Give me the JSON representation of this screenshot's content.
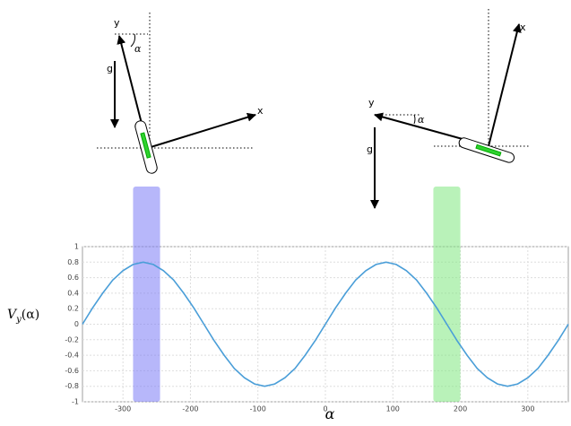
{
  "chart_data": {
    "type": "line",
    "ylabel": [
      "V",
      "y",
      "(α)"
    ],
    "xlabel": "α",
    "x": [
      -360,
      -345,
      -330,
      -315,
      -300,
      -285,
      -270,
      -255,
      -240,
      -225,
      -210,
      -195,
      -180,
      -165,
      -150,
      -135,
      -120,
      -105,
      -90,
      -75,
      -60,
      -45,
      -30,
      -15,
      0,
      15,
      30,
      45,
      60,
      75,
      90,
      105,
      120,
      135,
      150,
      165,
      180,
      195,
      210,
      225,
      240,
      255,
      270,
      285,
      300,
      315,
      330,
      345,
      360
    ],
    "series": [
      {
        "color": "#4a9ed8",
        "values": [
          0,
          0.21,
          0.4,
          0.57,
          0.69,
          0.77,
          0.8,
          0.77,
          0.69,
          0.57,
          0.4,
          0.21,
          0,
          -0.21,
          -0.4,
          -0.57,
          -0.69,
          -0.77,
          -0.8,
          -0.77,
          -0.69,
          -0.57,
          -0.4,
          -0.21,
          0,
          0.21,
          0.4,
          0.57,
          0.69,
          0.77,
          0.8,
          0.77,
          0.69,
          0.57,
          0.4,
          0.21,
          0,
          -0.21,
          -0.4,
          -0.57,
          -0.69,
          -0.77,
          -0.8,
          -0.77,
          -0.69,
          -0.57,
          -0.4,
          -0.21,
          0
        ]
      }
    ],
    "highlights": [
      {
        "color": "#7b7bf5",
        "xrange": [
          -285,
          -245
        ]
      },
      {
        "color": "#7fe87f",
        "xrange": [
          160,
          200
        ]
      }
    ],
    "xlim": [
      -360,
      360
    ],
    "ylim": [
      -1,
      1
    ],
    "xticks": [
      -300,
      -200,
      -100,
      0,
      100,
      200,
      300
    ],
    "yticks": [
      -1,
      -0.8,
      -0.6,
      -0.4,
      -0.2,
      0,
      0.2,
      0.4,
      0.6,
      0.8,
      1
    ],
    "grid": true
  },
  "diagrams": [
    {
      "labels": [
        "y",
        "x",
        "α",
        "g"
      ]
    },
    {
      "labels": [
        "y",
        "x",
        "α",
        "g"
      ]
    }
  ]
}
